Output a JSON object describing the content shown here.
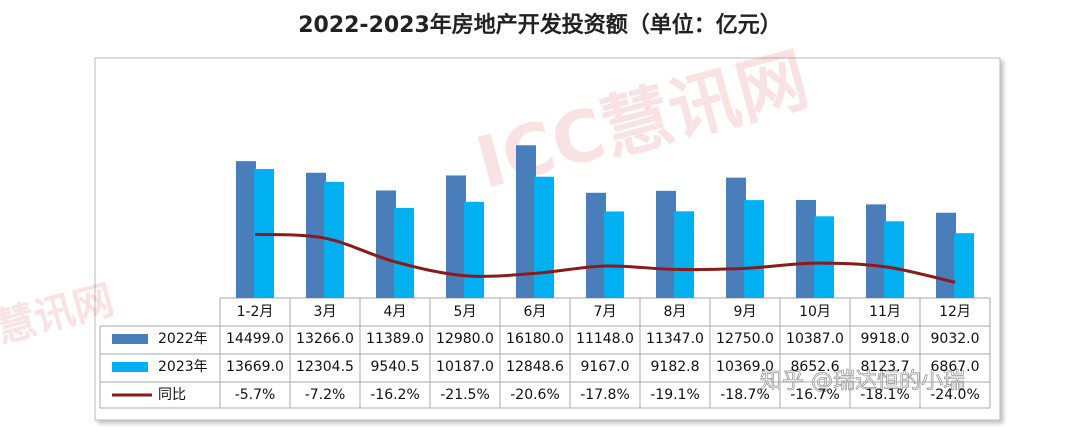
{
  "chart_data": {
    "type": "bar",
    "title": "2022-2023年房地产开发投资额（单位：亿元）",
    "categories": [
      "1-2月",
      "3月",
      "4月",
      "5月",
      "6月",
      "7月",
      "8月",
      "9月",
      "10月",
      "11月",
      "12月"
    ],
    "series": [
      {
        "name": "2022年",
        "color": "#4a7ebb",
        "values": [
          14499.0,
          13266.0,
          11389.0,
          12980.0,
          16180.0,
          11148.0,
          11347.0,
          12750.0,
          10387.0,
          9918.0,
          9032.0
        ],
        "value_labels": [
          "14499.0",
          "13266.0",
          "11389.0",
          "12980.0",
          "16180.0",
          "11148.0",
          "11347.0",
          "12750.0",
          "10387.0",
          "9918.0",
          "9032.0"
        ]
      },
      {
        "name": "2023年",
        "color": "#00b0f0",
        "values": [
          13669.0,
          12304.5,
          9540.5,
          10187.0,
          12848.6,
          9167.0,
          9182.8,
          10369.0,
          8652.6,
          8123.7,
          6867.0
        ],
        "value_labels": [
          "13669.0",
          "12304.5",
          "9540.5",
          "10187.0",
          "12848.6",
          "9167.0",
          "9182.8",
          "10369.0",
          "8652.6",
          "8123.7",
          "6867.0"
        ]
      },
      {
        "name": "同比",
        "type": "line",
        "axis": "y2",
        "color": "#8b1a1a",
        "values": [
          -5.7,
          -7.2,
          -16.2,
          -21.5,
          -20.6,
          -17.8,
          -19.1,
          -18.7,
          -16.7,
          -18.1,
          -24.0
        ],
        "value_labels": [
          "-5.7%",
          "-7.2%",
          "-16.2%",
          "-21.5%",
          "-20.6%",
          "-17.8%",
          "-19.1%",
          "-18.7%",
          "-16.7%",
          "-18.1%",
          "-24.0%"
        ]
      }
    ],
    "ylim": [
      0,
      25000
    ],
    "y2lim": [
      -30,
      60
    ]
  },
  "watermarks": [
    "ICC慧讯网",
    "慧讯网",
    "知乎 @瑞达恒的小瑞"
  ]
}
